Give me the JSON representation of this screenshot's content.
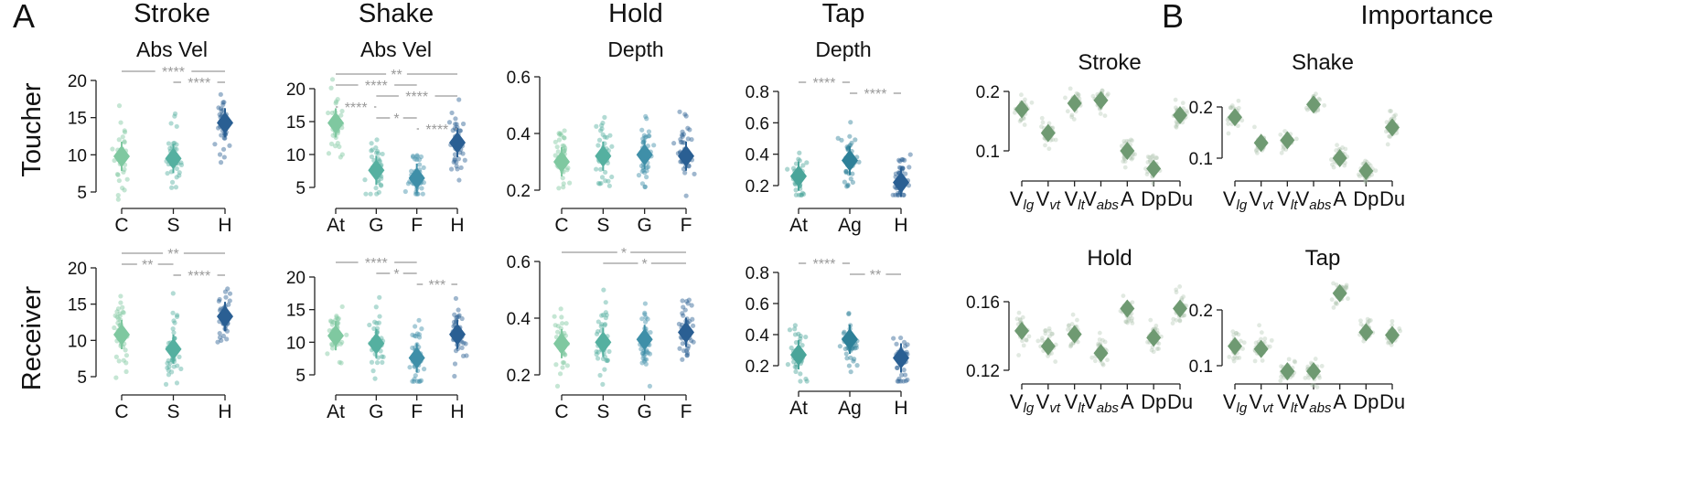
{
  "figure": {
    "panel_A_label": "A",
    "panel_B_label": "B",
    "importance_title": "Importance",
    "row_labels": [
      "Toucher",
      "Receiver"
    ]
  },
  "chart_data": [
    {
      "type": "scatter",
      "panel": "A",
      "gesture": "Stroke",
      "row": "Toucher",
      "metric": "Abs Vel",
      "categories": [
        "C",
        "S",
        "H"
      ],
      "means": [
        9.8,
        9.5,
        14.3
      ],
      "yticks": [
        5,
        10,
        15,
        20
      ],
      "ylim": [
        4,
        21.5
      ],
      "significance": [
        {
          "from": "C",
          "to": "H",
          "label": "****"
        },
        {
          "from": "S",
          "to": "H",
          "label": "****"
        }
      ]
    },
    {
      "type": "scatter",
      "panel": "A",
      "gesture": "Shake",
      "row": "Toucher",
      "metric": "Abs Vel",
      "categories": [
        "At",
        "G",
        "F",
        "H"
      ],
      "means": [
        14.8,
        7.6,
        6.4,
        11.8
      ],
      "yticks": [
        5,
        10,
        15,
        20
      ],
      "ylim": [
        4,
        23
      ],
      "significance": [
        {
          "from": "At",
          "to": "H",
          "label": "**"
        },
        {
          "from": "At",
          "to": "F",
          "label": "****"
        },
        {
          "from": "G",
          "to": "H",
          "label": "****"
        },
        {
          "from": "At",
          "to": "G",
          "label": "****"
        },
        {
          "from": "G",
          "to": "F",
          "label": "*"
        },
        {
          "from": "F",
          "to": "H",
          "label": "****"
        }
      ]
    },
    {
      "type": "scatter",
      "panel": "A",
      "gesture": "Hold",
      "row": "Toucher",
      "metric": "Depth",
      "categories": [
        "C",
        "S",
        "G",
        "F"
      ],
      "means": [
        0.3,
        0.32,
        0.325,
        0.32
      ],
      "yticks": [
        0.2,
        0.4,
        0.6
      ],
      "ylim": [
        0.18,
        0.62
      ],
      "significance": []
    },
    {
      "type": "scatter",
      "panel": "A",
      "gesture": "Tap",
      "row": "Toucher",
      "metric": "Depth",
      "categories": [
        "At",
        "Ag",
        "H"
      ],
      "means": [
        0.26,
        0.36,
        0.22
      ],
      "yticks": [
        0.2,
        0.4,
        0.6,
        0.8
      ],
      "ylim": [
        0.14,
        0.88
      ],
      "significance": [
        {
          "from": "At",
          "to": "Ag",
          "label": "****"
        },
        {
          "from": "Ag",
          "to": "H",
          "label": "****"
        }
      ]
    },
    {
      "type": "scatter",
      "panel": "A",
      "gesture": "Stroke",
      "row": "Receiver",
      "metric": "",
      "categories": [
        "C",
        "S",
        "H"
      ],
      "means": [
        10.8,
        8.8,
        13.3
      ],
      "yticks": [
        5,
        10,
        15,
        20
      ],
      "ylim": [
        3.5,
        21.5
      ],
      "significance": [
        {
          "from": "C",
          "to": "H",
          "label": "**"
        },
        {
          "from": "C",
          "to": "S",
          "label": "**"
        },
        {
          "from": "S",
          "to": "H",
          "label": "****"
        }
      ]
    },
    {
      "type": "scatter",
      "panel": "A",
      "gesture": "Shake",
      "row": "Receiver",
      "metric": "",
      "categories": [
        "At",
        "G",
        "F",
        "H"
      ],
      "means": [
        11.0,
        9.8,
        7.6,
        11.2
      ],
      "yticks": [
        5,
        10,
        15,
        20
      ],
      "ylim": [
        4,
        22
      ],
      "significance": [
        {
          "from": "At",
          "to": "F",
          "label": "****"
        },
        {
          "from": "G",
          "to": "F",
          "label": "*"
        },
        {
          "from": "F",
          "to": "H",
          "label": "***"
        }
      ]
    },
    {
      "type": "scatter",
      "panel": "A",
      "gesture": "Hold",
      "row": "Receiver",
      "metric": "",
      "categories": [
        "C",
        "S",
        "G",
        "F"
      ],
      "means": [
        0.31,
        0.315,
        0.325,
        0.35
      ],
      "yticks": [
        0.2,
        0.4,
        0.6
      ],
      "ylim": [
        0.16,
        0.62
      ],
      "significance": [
        {
          "from": "C",
          "to": "F",
          "label": "*"
        },
        {
          "from": "S",
          "to": "F",
          "label": "*"
        }
      ]
    },
    {
      "type": "scatter",
      "panel": "A",
      "gesture": "Tap",
      "row": "Receiver",
      "metric": "",
      "categories": [
        "At",
        "Ag",
        "H"
      ],
      "means": [
        0.27,
        0.37,
        0.25
      ],
      "yticks": [
        0.2,
        0.4,
        0.6,
        0.8
      ],
      "ylim": [
        0.1,
        0.9
      ],
      "significance": [
        {
          "from": "At",
          "to": "Ag",
          "label": "****"
        },
        {
          "from": "Ag",
          "to": "H",
          "label": "**"
        }
      ]
    },
    {
      "type": "scatter",
      "panel": "B",
      "gesture": "Stroke",
      "features": [
        "V_lg",
        "V_vt",
        "V_lt",
        "V_abs",
        "A",
        "Dp",
        "Du"
      ],
      "means": [
        0.17,
        0.13,
        0.18,
        0.185,
        0.1,
        0.07,
        0.16
      ],
      "yticks": [
        0.1,
        0.2
      ],
      "ylim": [
        0.045,
        0.23
      ]
    },
    {
      "type": "scatter",
      "panel": "B",
      "gesture": "Shake",
      "features": [
        "V_lg",
        "V_vt",
        "V_lt",
        "V_abs",
        "A",
        "Dp",
        "Du"
      ],
      "means": [
        0.18,
        0.13,
        0.135,
        0.205,
        0.1,
        0.075,
        0.16
      ],
      "yticks": [
        0.1,
        0.2
      ],
      "ylim": [
        0.055,
        0.24
      ]
    },
    {
      "type": "scatter",
      "panel": "B",
      "gesture": "Hold",
      "features": [
        "V_lg",
        "V_vt",
        "V_lt",
        "V_abs",
        "A",
        "Dp",
        "Du"
      ],
      "means": [
        0.143,
        0.134,
        0.141,
        0.13,
        0.156,
        0.139,
        0.156
      ],
      "yticks": [
        0.12,
        0.16
      ],
      "ylim": [
        0.115,
        0.17
      ]
    },
    {
      "type": "scatter",
      "panel": "B",
      "gesture": "Tap",
      "features": [
        "V_lg",
        "V_vt",
        "V_lt",
        "V_abs",
        "A",
        "Dp",
        "Du"
      ],
      "means": [
        0.135,
        0.13,
        0.09,
        0.09,
        0.23,
        0.16,
        0.155
      ],
      "yticks": [
        0.1,
        0.2
      ],
      "ylim": [
        0.06,
        0.27
      ]
    }
  ]
}
